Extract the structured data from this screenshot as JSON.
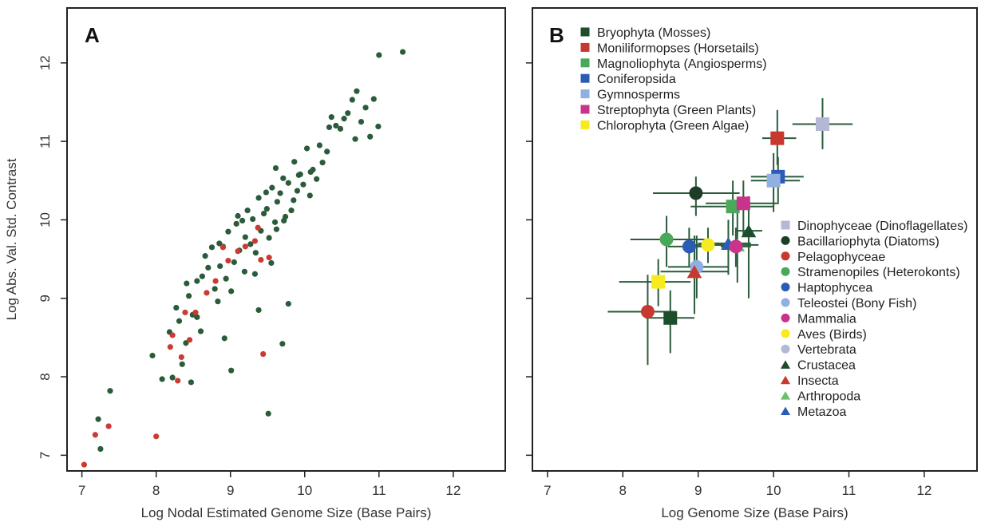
{
  "chart_data": [
    {
      "panel_label": "A",
      "type": "scatter",
      "xlabel": "Log Nodal Estimated Genome Size (Base Pairs)",
      "ylabel": "Log Abs. Val. Std. Contrast",
      "xlim": [
        6.8,
        12.7
      ],
      "ylim": [
        6.8,
        12.7
      ],
      "xticks": [
        7,
        8,
        9,
        10,
        11,
        12
      ],
      "yticks": [
        7,
        8,
        9,
        10,
        11,
        12
      ],
      "grid": false,
      "series": [
        {
          "color": "#2a5b3a",
          "points": [
            [
              7.25,
              7.08
            ],
            [
              7.22,
              7.46
            ],
            [
              7.38,
              7.82
            ],
            [
              7.95,
              8.27
            ],
            [
              8.08,
              7.97
            ],
            [
              8.22,
              7.99
            ],
            [
              8.18,
              8.57
            ],
            [
              8.27,
              8.88
            ],
            [
              8.31,
              8.71
            ],
            [
              8.35,
              8.16
            ],
            [
              8.4,
              8.43
            ],
            [
              8.44,
              9.03
            ],
            [
              8.49,
              8.79
            ],
            [
              8.47,
              7.93
            ],
            [
              8.55,
              8.76
            ],
            [
              8.6,
              8.58
            ],
            [
              8.62,
              9.28
            ],
            [
              8.66,
              9.54
            ],
            [
              8.7,
              9.39
            ],
            [
              8.75,
              9.65
            ],
            [
              8.79,
              9.12
            ],
            [
              8.83,
              8.96
            ],
            [
              8.86,
              9.41
            ],
            [
              8.9,
              9.66
            ],
            [
              8.94,
              9.25
            ],
            [
              8.97,
              9.85
            ],
            [
              9.01,
              9.09
            ],
            [
              9.05,
              9.46
            ],
            [
              9.08,
              9.95
            ],
            [
              9.12,
              9.61
            ],
            [
              9.16,
              9.99
            ],
            [
              9.19,
              9.34
            ],
            [
              9.23,
              10.12
            ],
            [
              9.27,
              9.69
            ],
            [
              9.3,
              10.01
            ],
            [
              9.34,
              9.58
            ],
            [
              9.38,
              10.28
            ],
            [
              9.41,
              9.86
            ],
            [
              9.45,
              10.08
            ],
            [
              9.49,
              10.14
            ],
            [
              9.52,
              9.77
            ],
            [
              9.56,
              10.41
            ],
            [
              9.6,
              9.97
            ],
            [
              9.63,
              10.23
            ],
            [
              9.67,
              10.34
            ],
            [
              9.71,
              10.53
            ],
            [
              9.74,
              10.04
            ],
            [
              9.78,
              10.47
            ],
            [
              9.82,
              10.12
            ],
            [
              9.86,
              10.74
            ],
            [
              9.9,
              10.37
            ],
            [
              9.94,
              10.58
            ],
            [
              9.98,
              10.45
            ],
            [
              10.03,
              10.91
            ],
            [
              10.07,
              10.31
            ],
            [
              10.11,
              10.64
            ],
            [
              10.16,
              10.52
            ],
            [
              10.2,
              10.95
            ],
            [
              10.24,
              10.73
            ],
            [
              10.3,
              10.87
            ],
            [
              10.36,
              11.31
            ],
            [
              10.42,
              11.2
            ],
            [
              10.48,
              11.16
            ],
            [
              10.53,
              11.29
            ],
            [
              10.58,
              11.36
            ],
            [
              10.64,
              11.53
            ],
            [
              10.7,
              11.64
            ],
            [
              10.76,
              11.25
            ],
            [
              10.82,
              11.43
            ],
            [
              10.88,
              11.06
            ],
            [
              10.93,
              11.54
            ],
            [
              10.99,
              11.19
            ],
            [
              11.0,
              12.1
            ],
            [
              11.32,
              12.14
            ],
            [
              9.51,
              7.53
            ],
            [
              9.01,
              8.08
            ],
            [
              9.7,
              8.42
            ],
            [
              9.38,
              8.85
            ],
            [
              8.92,
              8.49
            ],
            [
              9.78,
              8.93
            ],
            [
              9.55,
              9.45
            ],
            [
              9.62,
              9.88
            ],
            [
              9.2,
              9.78
            ],
            [
              8.55,
              9.22
            ],
            [
              9.85,
              10.25
            ],
            [
              10.08,
              10.61
            ],
            [
              9.48,
              10.35
            ],
            [
              8.85,
              9.7
            ],
            [
              9.1,
              10.05
            ],
            [
              9.72,
              9.99
            ],
            [
              8.41,
              9.19
            ],
            [
              10.33,
              11.18
            ],
            [
              10.68,
              11.03
            ],
            [
              9.33,
              9.31
            ],
            [
              9.92,
              10.57
            ],
            [
              9.61,
              10.66
            ]
          ]
        },
        {
          "color": "#cc3b33",
          "points": [
            [
              7.03,
              6.88
            ],
            [
              7.18,
              7.26
            ],
            [
              7.36,
              7.37
            ],
            [
              8.0,
              7.24
            ],
            [
              8.19,
              8.38
            ],
            [
              8.22,
              8.53
            ],
            [
              8.29,
              7.95
            ],
            [
              8.34,
              8.25
            ],
            [
              8.39,
              8.82
            ],
            [
              8.45,
              8.47
            ],
            [
              8.53,
              8.82
            ],
            [
              8.68,
              9.07
            ],
            [
              8.8,
              9.22
            ],
            [
              8.9,
              9.65
            ],
            [
              8.97,
              9.48
            ],
            [
              9.1,
              9.6
            ],
            [
              9.2,
              9.66
            ],
            [
              9.33,
              9.73
            ],
            [
              9.37,
              9.9
            ],
            [
              9.41,
              9.49
            ],
            [
              9.44,
              8.29
            ],
            [
              9.52,
              9.52
            ]
          ]
        }
      ]
    },
    {
      "panel_label": "B",
      "type": "scatter",
      "xlabel": "Log Genome Size (Base Pairs)",
      "ylabel": "",
      "xlim": [
        6.8,
        12.7
      ],
      "ylim": [
        6.8,
        12.7
      ],
      "xticks": [
        7,
        8,
        9,
        10,
        11,
        12
      ],
      "yticks": [
        7,
        8,
        9,
        10,
        11,
        12
      ],
      "grid": false,
      "legend_top": [
        {
          "name": "Bryophyta (Mosses)",
          "marker": "square",
          "color": "#1e4d2b"
        },
        {
          "name": "Moniliformopses (Horsetails)",
          "marker": "square",
          "color": "#c8382f"
        },
        {
          "name": "Magnoliophyta (Angiosperms)",
          "marker": "square",
          "color": "#4aa85a"
        },
        {
          "name": "Coniferopsida",
          "marker": "square",
          "color": "#2a5bb5"
        },
        {
          "name": "Gymnosperms",
          "marker": "square",
          "color": "#8fb0e0"
        },
        {
          "name": "Streptophyta (Green Plants)",
          "marker": "square",
          "color": "#c8338c"
        },
        {
          "name": "Chlorophyta (Green Algae)",
          "marker": "square",
          "color": "#f7ea1e"
        }
      ],
      "legend_bottom": [
        {
          "name": "Dinophyceae (Dinoflagellates)",
          "marker": "square",
          "color": "#b4b8d4"
        },
        {
          "name": "Bacillariophyta (Diatoms)",
          "marker": "circle",
          "color": "#1e3d27"
        },
        {
          "name": "Pelagophyceae",
          "marker": "circle",
          "color": "#c8382f"
        },
        {
          "name": "Stramenopiles (Heterokonts)",
          "marker": "circle",
          "color": "#4aa85a"
        },
        {
          "name": "Haptophycea",
          "marker": "circle",
          "color": "#2a5bb5"
        },
        {
          "name": "Teleostei (Bony Fish)",
          "marker": "circle",
          "color": "#8fb0e0"
        },
        {
          "name": "Mammalia",
          "marker": "circle",
          "color": "#c8338c"
        },
        {
          "name": "Aves (Birds)",
          "marker": "circle",
          "color": "#f7ea1e"
        },
        {
          "name": "Vertebrata",
          "marker": "circle",
          "color": "#b4b8d4"
        },
        {
          "name": "Crustacea",
          "marker": "triangle",
          "color": "#1e4d2b"
        },
        {
          "name": "Insecta",
          "marker": "triangle",
          "color": "#c8382f"
        },
        {
          "name": "Arthropoda",
          "marker": "triangle",
          "color": "#6cc06a"
        },
        {
          "name": "Metazoa",
          "marker": "triangle",
          "color": "#2a5bb5"
        }
      ],
      "errorbar_color": "#2a5b3a",
      "points": [
        {
          "group": "Dinophyceae (Dinoflagellates)",
          "x": 10.65,
          "y": 11.22,
          "xerr": [
            10.25,
            11.05
          ],
          "yerr": [
            10.9,
            11.55
          ]
        },
        {
          "group": "Moniliformopses (Horsetails)",
          "x": 10.05,
          "y": 11.04,
          "xerr": [
            9.85,
            10.3
          ],
          "yerr": [
            10.7,
            11.4
          ]
        },
        {
          "group": "Coniferopsida",
          "x": 10.06,
          "y": 10.55,
          "xerr": [
            9.7,
            10.4
          ],
          "yerr": [
            10.2,
            10.8
          ]
        },
        {
          "group": "Gymnosperms",
          "x": 10.0,
          "y": 10.5,
          "xerr": [
            9.7,
            10.35
          ],
          "yerr": [
            10.1,
            10.85
          ]
        },
        {
          "group": "Bacillariophyta (Diatoms)",
          "x": 8.97,
          "y": 10.34,
          "xerr": [
            8.4,
            9.55
          ],
          "yerr": [
            10.05,
            10.55
          ]
        },
        {
          "group": "Magnoliophyta (Angiosperms)",
          "x": 9.46,
          "y": 10.17,
          "xerr": [
            8.9,
            10.0
          ],
          "yerr": [
            9.8,
            10.5
          ]
        },
        {
          "group": "Streptophyta (Green Plants)",
          "x": 9.6,
          "y": 10.21,
          "xerr": [
            9.1,
            10.05
          ],
          "yerr": [
            9.8,
            10.5
          ]
        },
        {
          "group": "Stramenopiles (Heterokonts)",
          "x": 8.58,
          "y": 9.75,
          "xerr": [
            8.1,
            9.1
          ],
          "yerr": [
            9.4,
            10.05
          ]
        },
        {
          "group": "Haptophycea",
          "x": 8.88,
          "y": 9.66,
          "xerr": [
            8.6,
            9.2
          ],
          "yerr": [
            9.4,
            9.9
          ]
        },
        {
          "group": "Aves (Birds)",
          "x": 9.13,
          "y": 9.68,
          "xerr": [
            8.9,
            9.4
          ],
          "yerr": [
            9.45,
            9.9
          ]
        },
        {
          "group": "Crustacea",
          "x": 9.67,
          "y": 9.86,
          "xerr": [
            9.5,
            9.85
          ],
          "yerr": [
            9.0,
            10.3
          ]
        },
        {
          "group": "Metazoa",
          "x": 9.4,
          "y": 9.7,
          "xerr": [
            9.0,
            9.7
          ],
          "yerr": [
            9.3,
            10.0
          ]
        },
        {
          "group": "Arthropoda",
          "x": 9.52,
          "y": 9.68,
          "xerr": [
            9.2,
            9.8
          ],
          "yerr": [
            9.2,
            10.1
          ]
        },
        {
          "group": "Mammalia",
          "x": 9.5,
          "y": 9.66,
          "xerr": [
            9.3,
            9.7
          ],
          "yerr": [
            9.4,
            9.9
          ]
        },
        {
          "group": "Teleostei (Bony Fish)",
          "x": 8.98,
          "y": 9.4,
          "xerr": [
            8.6,
            9.4
          ],
          "yerr": [
            9.0,
            9.8
          ]
        },
        {
          "group": "Insecta",
          "x": 8.95,
          "y": 9.34,
          "xerr": [
            8.5,
            9.4
          ],
          "yerr": [
            8.8,
            9.8
          ]
        },
        {
          "group": "Chlorophyta (Green Algae)",
          "x": 8.47,
          "y": 9.21,
          "xerr": [
            7.95,
            8.9
          ],
          "yerr": [
            8.9,
            9.5
          ]
        },
        {
          "group": "Pelagophyceae",
          "x": 8.33,
          "y": 8.83,
          "xerr": [
            7.8,
            8.7
          ],
          "yerr": [
            8.15,
            9.3
          ]
        },
        {
          "group": "Bryophyta (Mosses)",
          "x": 8.63,
          "y": 8.75,
          "xerr": [
            8.3,
            8.95
          ],
          "yerr": [
            8.3,
            9.1
          ]
        }
      ]
    }
  ]
}
